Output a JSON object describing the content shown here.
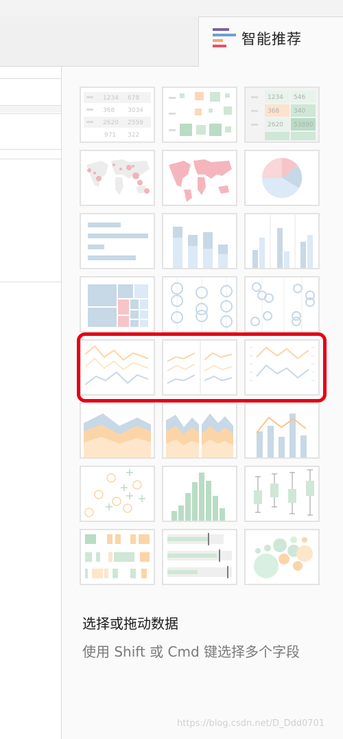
{
  "tab": {
    "label": "智能推荐",
    "icon": "smart-recommend-icon"
  },
  "charts": [
    {
      "name": "text-table-thumb",
      "cells": [
        "1234",
        "678",
        "368",
        "3034",
        "2620",
        "2559",
        "971",
        "322"
      ]
    },
    {
      "name": "heatmap-table-thumb"
    },
    {
      "name": "highlight-table-thumb",
      "cells": [
        "1234",
        "546",
        "368",
        "340",
        "2620",
        "53890"
      ]
    },
    {
      "name": "symbol-map-thumb"
    },
    {
      "name": "filled-map-thumb"
    },
    {
      "name": "pie-chart-thumb"
    },
    {
      "name": "horizontal-bar-thumb"
    },
    {
      "name": "stacked-bar-thumb"
    },
    {
      "name": "side-by-side-bar-thumb"
    },
    {
      "name": "treemap-thumb"
    },
    {
      "name": "circle-view-thumb"
    },
    {
      "name": "side-by-side-circle-thumb"
    },
    {
      "name": "line-continuous-thumb"
    },
    {
      "name": "line-discrete-thumb"
    },
    {
      "name": "dual-line-thumb"
    },
    {
      "name": "area-continuous-thumb"
    },
    {
      "name": "area-discrete-thumb"
    },
    {
      "name": "dual-combination-thumb"
    },
    {
      "name": "scatter-plot-thumb"
    },
    {
      "name": "histogram-thumb"
    },
    {
      "name": "box-plot-thumb"
    },
    {
      "name": "gantt-chart-thumb"
    },
    {
      "name": "bullet-graph-thumb"
    },
    {
      "name": "packed-bubbles-thumb"
    }
  ],
  "hint": {
    "title": "选择或拖动数据",
    "desc": "使用 Shift 或 Cmd 键选择多个字段"
  },
  "watermark": "https://blog.csdn.net/D_Ddd0701"
}
